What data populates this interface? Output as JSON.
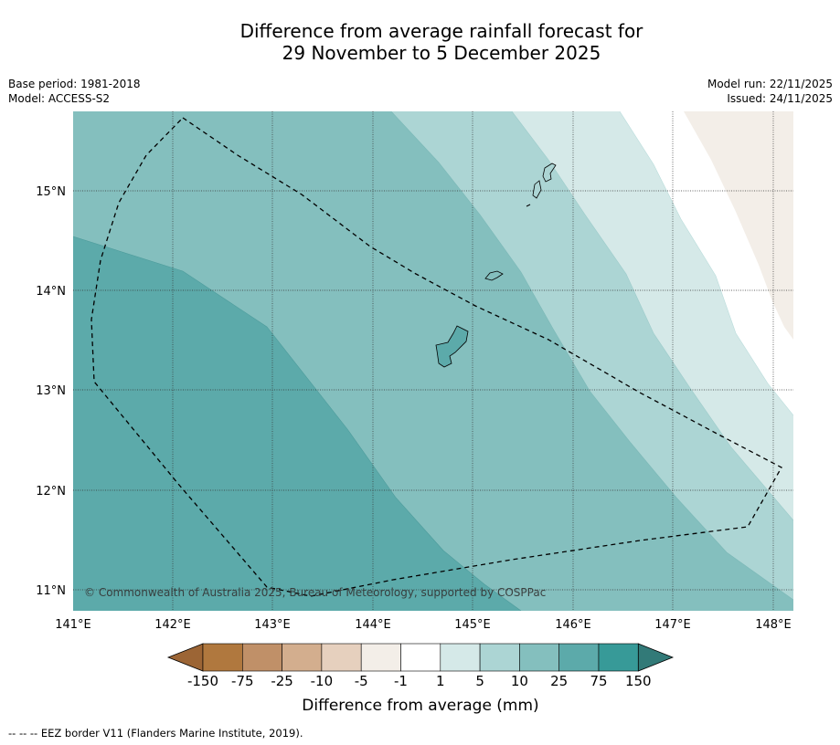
{
  "title": {
    "line1": "Difference from average rainfall forecast for",
    "line2": "29 November to 5 December 2025"
  },
  "meta": {
    "base_period": "Base period: 1981-2018",
    "model": "Model: ACCESS-S2",
    "model_run": "Model run: 22/11/2025",
    "issued": "Issued: 24/11/2025"
  },
  "map": {
    "lat_labels": [
      "15°N",
      "14°N",
      "13°N",
      "12°N",
      "11°N"
    ],
    "lon_labels": [
      "141°E",
      "142°E",
      "143°E",
      "144°E",
      "145°E",
      "146°E",
      "147°E",
      "148°E"
    ],
    "copyright": "© Commonwealth of Australia 2025, Bureau of Meteorology, supported by COSPPac"
  },
  "legend": {
    "title": "Difference from average (mm)",
    "tick_labels": [
      "-150",
      "-75",
      "-25",
      "-10",
      "-5",
      "-1",
      "1",
      "5",
      "10",
      "25",
      "75",
      "150"
    ],
    "colors": [
      "#9c6535",
      "#b0783e",
      "#c09068",
      "#d3ae8e",
      "#e6d0be",
      "#f3eee8",
      "#ffffff",
      "#d5e9e8",
      "#acd5d4",
      "#84bfbe",
      "#5caaaa",
      "#379a98",
      "#327a78"
    ]
  },
  "footer": "--  --  -- EEZ border V11 (Flanders Marine Institute, 2019)."
}
